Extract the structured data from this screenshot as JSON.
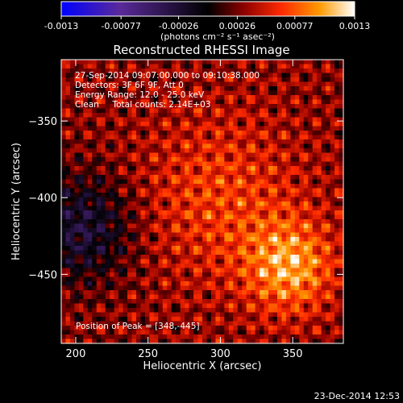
{
  "colorbar": {
    "ticks": [
      "-0.0013",
      "-0.00077",
      "-0.00026",
      "0.00026",
      "0.00077",
      "0.0013"
    ],
    "unit_label": "(photons cm⁻² s⁻¹ asec⁻²)",
    "colors": [
      "#0000ff",
      "#5a2a9a",
      "#000000",
      "#8a0000",
      "#ff2a00",
      "#ff9a00",
      "#ffffff"
    ]
  },
  "chart_data": {
    "type": "heatmap",
    "title": "Reconstructed RHESSI Image",
    "annotations": [
      "27-Sep-2014 09:07:00.000 to 09:10:38.000",
      "Detectors: 3F 6F 9F, Att 0",
      "Energy Range: 12.0 - 25.0 keV",
      "Clean     Total counts: 2.14E+03"
    ],
    "peak_label": "Position of Peak = [348,-445]",
    "peak": [
      348,
      -445
    ],
    "xlabel": "Heliocentric X (arcsec)",
    "ylabel": "Heliocentric Y (arcsec)",
    "xlim": [
      190,
      385
    ],
    "ylim": [
      -495,
      -310
    ],
    "xticks": [
      200,
      250,
      300,
      350
    ],
    "yticks": [
      -350,
      -400,
      -450
    ],
    "zlim": [
      -0.0013,
      0.0013
    ]
  },
  "footer": {
    "timestamp": "23-Dec-2014 12:53"
  }
}
